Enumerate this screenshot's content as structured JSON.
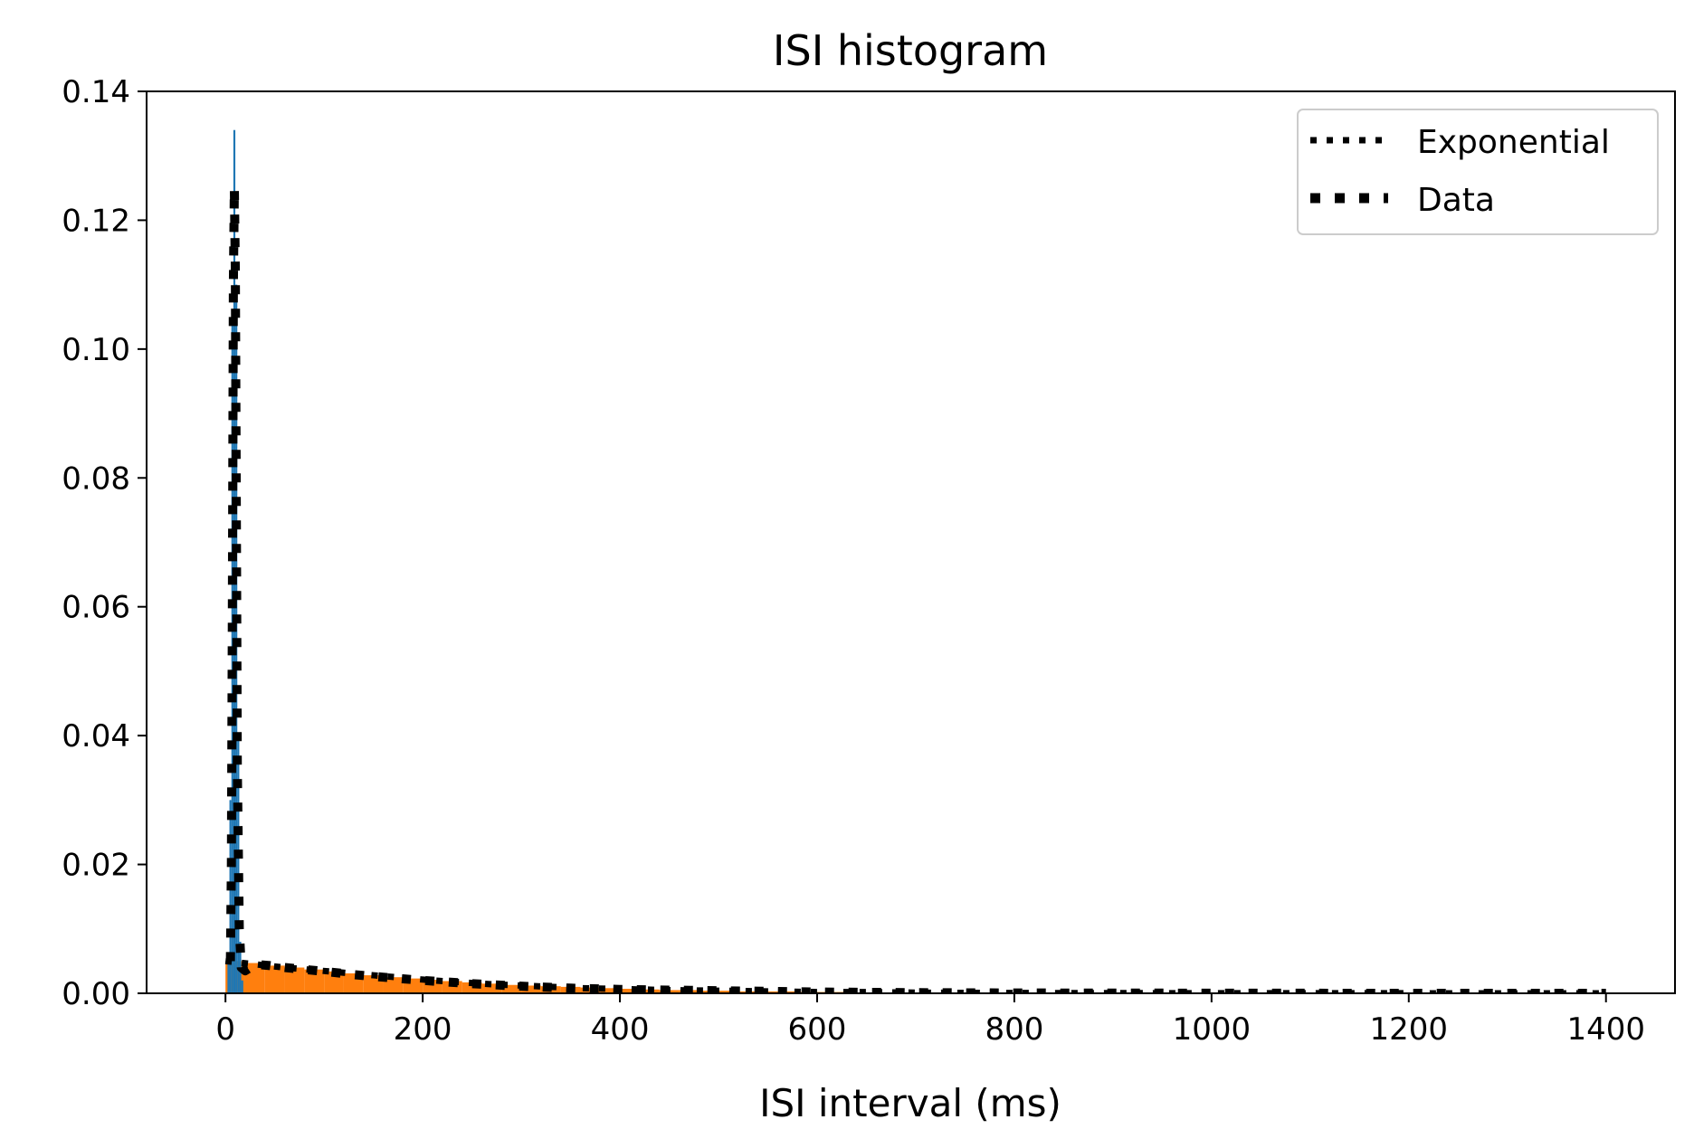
{
  "chart_data": {
    "type": "bar",
    "title": "ISI histogram",
    "xlabel": "ISI interval (ms)",
    "ylabel": "",
    "xlim": [
      -80,
      1470
    ],
    "ylim": [
      0,
      0.14
    ],
    "xticks": [
      0,
      200,
      400,
      600,
      800,
      1000,
      1200,
      1400
    ],
    "yticks": [
      0.0,
      0.02,
      0.04,
      0.06,
      0.08,
      0.1,
      0.12,
      0.14
    ],
    "ytick_labels": [
      "0.00",
      "0.02",
      "0.04",
      "0.06",
      "0.08",
      "0.10",
      "0.12",
      "0.14"
    ],
    "grid": false,
    "legend": {
      "placement": "top-right",
      "entries": [
        "Exponential",
        "Data"
      ]
    },
    "colors": {
      "blue": "#1f77b4",
      "orange": "#ff7f0e",
      "line": "#000000"
    },
    "series": [
      {
        "kind": "histogram",
        "color": "#1f77b4",
        "bins": [
          [
            2,
            4,
            0.005
          ],
          [
            4,
            6,
            0.03
          ],
          [
            6,
            8,
            0.105
          ],
          [
            8,
            10,
            0.134
          ],
          [
            10,
            12,
            0.11
          ],
          [
            12,
            14,
            0.04
          ],
          [
            14,
            16,
            0.008
          ],
          [
            16,
            18,
            0.002
          ]
        ]
      },
      {
        "kind": "histogram",
        "color": "#ff7f0e",
        "bins": [
          [
            0,
            20,
            0.005
          ],
          [
            20,
            40,
            0.0047
          ],
          [
            40,
            60,
            0.0043
          ],
          [
            60,
            80,
            0.004
          ],
          [
            80,
            100,
            0.0037
          ],
          [
            100,
            120,
            0.0034
          ],
          [
            120,
            140,
            0.0031
          ],
          [
            140,
            160,
            0.0028
          ],
          [
            160,
            180,
            0.0025
          ],
          [
            180,
            200,
            0.0023
          ],
          [
            200,
            220,
            0.0021
          ],
          [
            220,
            240,
            0.0019
          ],
          [
            240,
            260,
            0.0017
          ],
          [
            260,
            280,
            0.0015
          ],
          [
            280,
            300,
            0.0013
          ],
          [
            300,
            320,
            0.0012
          ],
          [
            320,
            340,
            0.0011
          ],
          [
            340,
            360,
            0.001
          ],
          [
            360,
            380,
            0.0009
          ],
          [
            380,
            400,
            0.0008
          ],
          [
            400,
            420,
            0.0007
          ],
          [
            420,
            440,
            0.0006
          ],
          [
            440,
            460,
            0.0005
          ],
          [
            460,
            480,
            0.0005
          ],
          [
            480,
            500,
            0.0004
          ],
          [
            500,
            520,
            0.0004
          ],
          [
            520,
            540,
            0.0003
          ],
          [
            540,
            560,
            0.0003
          ],
          [
            560,
            580,
            0.0003
          ],
          [
            580,
            600,
            0.0002
          ],
          [
            600,
            620,
            0.0002
          ],
          [
            620,
            640,
            0.0002
          ],
          [
            640,
            660,
            0.0001
          ],
          [
            660,
            680,
            0.0001
          ],
          [
            680,
            700,
            0.0001
          ]
        ]
      },
      {
        "name": "Exponential",
        "kind": "line",
        "color": "#000000",
        "x": [
          0,
          30,
          60,
          90,
          120,
          150,
          180,
          210,
          240,
          270,
          300,
          330,
          360,
          390,
          420,
          450,
          500,
          550,
          600,
          650,
          700,
          800,
          900,
          1000,
          1100,
          1200,
          1300,
          1400
        ],
        "y": [
          0.005,
          0.0045,
          0.004,
          0.0036,
          0.0032,
          0.0028,
          0.0024,
          0.002,
          0.0017,
          0.0014,
          0.0012,
          0.001,
          0.0008,
          0.0007,
          0.0006,
          0.0005,
          0.0004,
          0.0003,
          0.0002,
          0.0002,
          0.0001,
          5e-05,
          3e-05,
          2e-05,
          1e-05,
          1e-05,
          0.0,
          0.0
        ]
      },
      {
        "name": "Data",
        "kind": "line",
        "color": "#000000",
        "x": [
          5,
          6,
          7,
          8,
          9,
          10,
          11,
          12,
          14,
          16,
          20,
          30,
          45,
          60,
          80,
          100,
          130,
          160,
          200,
          250,
          300,
          350,
          400,
          500,
          600,
          700,
          800,
          1000,
          1200,
          1400
        ],
        "y": [
          0.005,
          0.02,
          0.06,
          0.11,
          0.125,
          0.112,
          0.075,
          0.035,
          0.01,
          0.004,
          0.0035,
          0.0045,
          0.0043,
          0.004,
          0.0037,
          0.0034,
          0.0029,
          0.0025,
          0.002,
          0.0015,
          0.0011,
          0.0008,
          0.0006,
          0.0004,
          0.0002,
          0.0001,
          5e-05,
          2e-05,
          0.0,
          0.0
        ]
      }
    ]
  }
}
